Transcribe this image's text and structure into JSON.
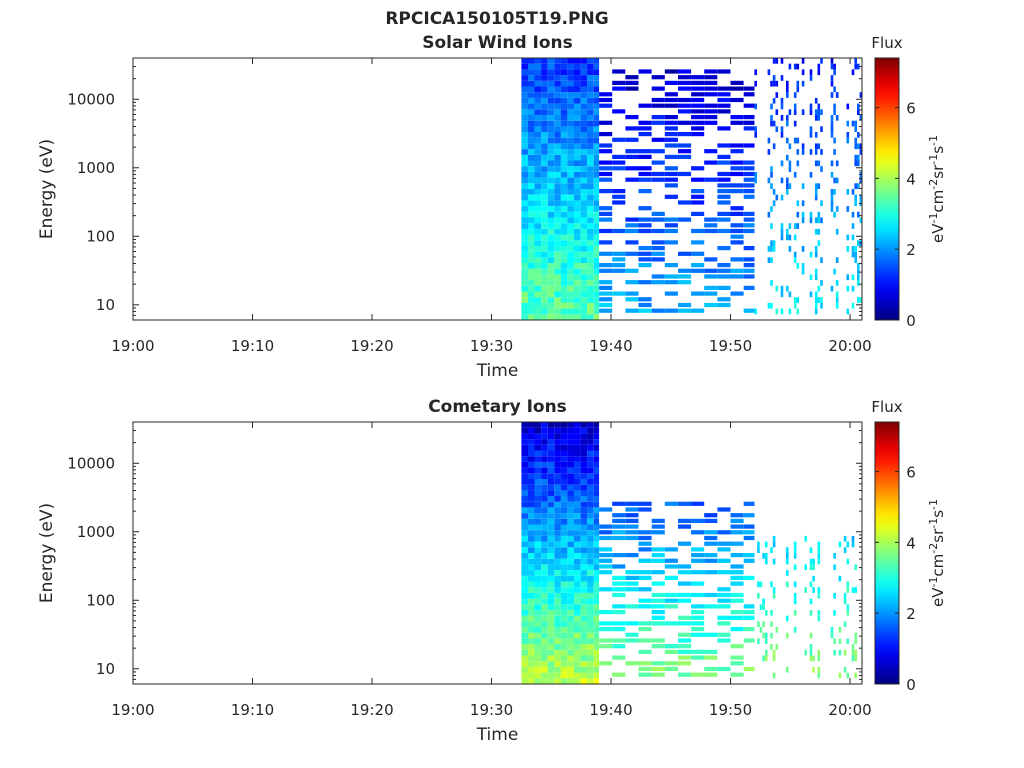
{
  "figure_title": "RPCICA150105T19.PNG",
  "panel_titles": [
    "Solar Wind Ions",
    "Cometary Ions"
  ],
  "chart_data": [
    {
      "type": "heatmap",
      "title": "Solar Wind Ions",
      "xlabel": "Time",
      "ylabel": "Energy (eV)",
      "y_scale": "log",
      "ylim": [
        6,
        40000
      ],
      "y_ticks": [
        10,
        100,
        1000,
        10000
      ],
      "y_tick_labels": [
        "10",
        "100",
        "1000",
        "10000"
      ],
      "x_ticks": [
        "19:00",
        "19:10",
        "19:20",
        "19:30",
        "19:40",
        "19:50",
        "20:00"
      ],
      "xlim": [
        "19:00",
        "20:01"
      ],
      "colorbar": {
        "label": "Flux",
        "unit": "eV-1cm-2sr-1s-1",
        "range": [
          0,
          7.4
        ],
        "ticks": [
          "0",
          "2",
          "4",
          "6"
        ],
        "colormap": "jet"
      },
      "data_start": "19:32:30",
      "dense_until": "19:39:00",
      "regions": [
        {
          "t_start": "19:32:30",
          "t_end": "19:39:00",
          "e_low": 6,
          "e_high": 40000,
          "flux_low_energy": 3.5,
          "flux_high_energy": 1.3
        },
        {
          "t_start": "19:39:00",
          "t_end": "19:52:00",
          "e_low": 7,
          "e_high": 30000,
          "flux_range": [
            0.5,
            2.2
          ],
          "pattern": "banded"
        },
        {
          "t_start": "19:52:00",
          "t_end": "20:01:00",
          "e_low": 7,
          "e_high": 40000,
          "flux_range": [
            1.0,
            2.8
          ],
          "pattern": "sparse"
        }
      ]
    },
    {
      "type": "heatmap",
      "title": "Cometary Ions",
      "xlabel": "Time",
      "ylabel": "Energy (eV)",
      "y_scale": "log",
      "ylim": [
        6,
        40000
      ],
      "y_ticks": [
        10,
        100,
        1000,
        10000
      ],
      "y_tick_labels": [
        "10",
        "100",
        "1000",
        "10000"
      ],
      "x_ticks": [
        "19:00",
        "19:10",
        "19:20",
        "19:30",
        "19:40",
        "19:50",
        "20:00"
      ],
      "xlim": [
        "19:00",
        "20:01"
      ],
      "colorbar": {
        "label": "Flux",
        "unit": "eV-1cm-2sr-1s-1",
        "range": [
          0,
          7.4
        ],
        "ticks": [
          "0",
          "2",
          "4",
          "6"
        ],
        "colormap": "jet"
      },
      "data_start": "19:32:30",
      "dense_until": "19:39:00",
      "regions": [
        {
          "t_start": "19:32:30",
          "t_end": "19:39:00",
          "e_low": 6,
          "e_high": 40000,
          "flux_low_energy": 4.2,
          "flux_high_energy": 0.6
        },
        {
          "t_start": "19:39:00",
          "t_end": "19:52:00",
          "e_low": 7,
          "e_high": 3000,
          "flux_range": [
            0.5,
            3.8
          ],
          "pattern": "banded"
        },
        {
          "t_start": "19:52:00",
          "t_end": "20:01:00",
          "e_low": 7,
          "e_high": 800,
          "flux_range": [
            1.5,
            3.8
          ],
          "pattern": "sparse"
        }
      ]
    }
  ]
}
